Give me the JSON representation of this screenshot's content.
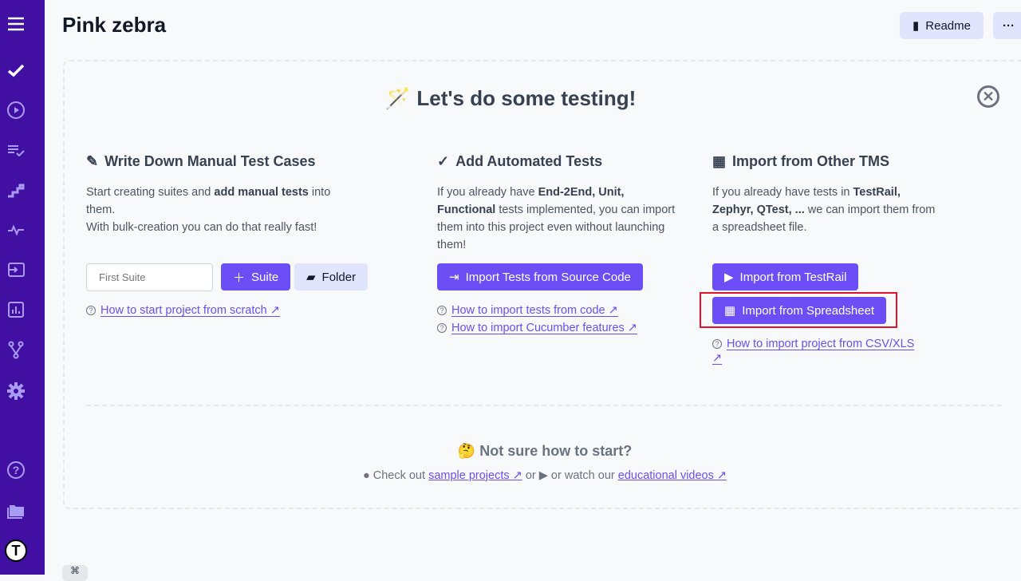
{
  "sidebar": {
    "bg": "#4110a2",
    "items": [
      "menu-icon",
      "check-icon",
      "play-icon",
      "checklist-icon",
      "stairs-icon",
      "pulse-icon",
      "import-icon",
      "chart-icon",
      "branch-icon",
      "gear-icon",
      "help-icon",
      "folder-icon",
      "avatar"
    ]
  },
  "header": {
    "title": "Pink zebra",
    "readme_label": "Readme",
    "more_label": "···"
  },
  "hero": {
    "emoji": "🪄",
    "title": "Let's do some testing!"
  },
  "manual": {
    "heading": "Write Down Manual Test Cases",
    "text_a": "Start creating suites and ",
    "text_bold": "add manual tests",
    "text_b": " into them.",
    "text_c": "With bulk-creation you can do that really fast!",
    "input_placeholder": "First Suite",
    "suite_label": "Suite",
    "folder_label": "Folder",
    "help_link": "How to start project from scratch  ↗"
  },
  "automated": {
    "heading": "Add Automated Tests",
    "t1": "If you already have ",
    "b1": "End-2End, Unit, Functional",
    "t2": " tests implemented, you can import them into this project even without launching them!",
    "button": "Import Tests from Source Code",
    "link1": "How to import tests from code  ↗",
    "link2": "How to import Cucumber features  ↗"
  },
  "tms": {
    "heading": "Import from Other TMS",
    "t1": "If you already have tests in ",
    "b1": "TestRail, Zephyr, QTest, ...",
    "t2": " we can import them from a spreadsheet file.",
    "button1": "Import from TestRail",
    "button2": "Import from Spreadsheet",
    "link": "How to import project from CSV/XLS",
    "link_arrow": "↗"
  },
  "footer": {
    "emoji": "🤔",
    "title": "Not sure how to start?",
    "t1": "Check out ",
    "link1": "sample projects  ↗",
    "t2": " or ",
    "t3": " or watch our ",
    "link2": "educational videos  ↗"
  },
  "colors": {
    "accent": "#6b4ef6",
    "highlight": "#e8112d"
  }
}
